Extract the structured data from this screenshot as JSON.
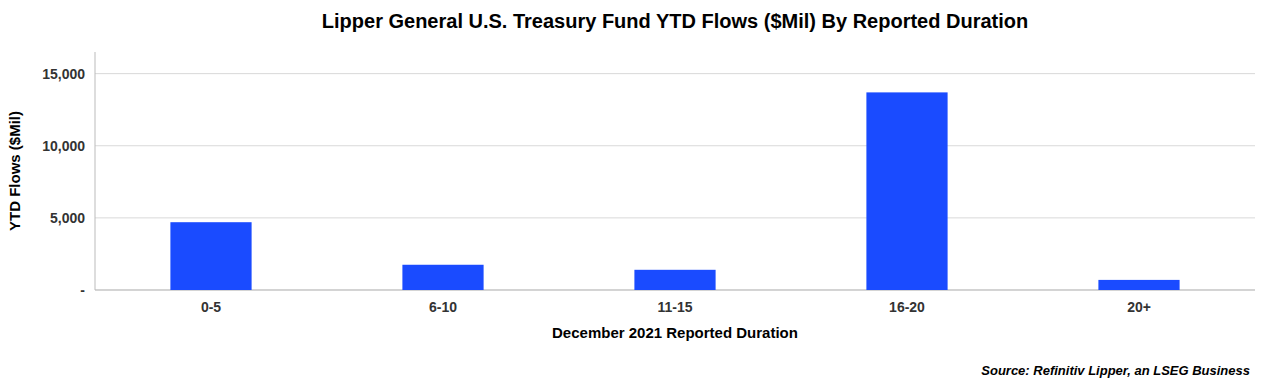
{
  "chart_data": {
    "type": "bar",
    "title": "Lipper General U.S. Treasury Fund YTD Flows ($Mil) By Reported Duration",
    "xlabel": "December 2021 Reported Duration",
    "ylabel": "YTD Flows ($Mil)",
    "categories": [
      "0-5",
      "6-10",
      "11-15",
      "16-20",
      "20+"
    ],
    "values": [
      4700,
      1750,
      1400,
      13700,
      700
    ],
    "color": "#1a4bff",
    "ylim": [
      0,
      16500
    ],
    "yticks": [
      {
        "value": 0,
        "label": "-"
      },
      {
        "value": 5000,
        "label": "5,000"
      },
      {
        "value": 10000,
        "label": "10,000"
      },
      {
        "value": 15000,
        "label": "15,000"
      }
    ],
    "grid": true,
    "annotation": "Source: Refinitiv Lipper, an LSEG Business"
  }
}
